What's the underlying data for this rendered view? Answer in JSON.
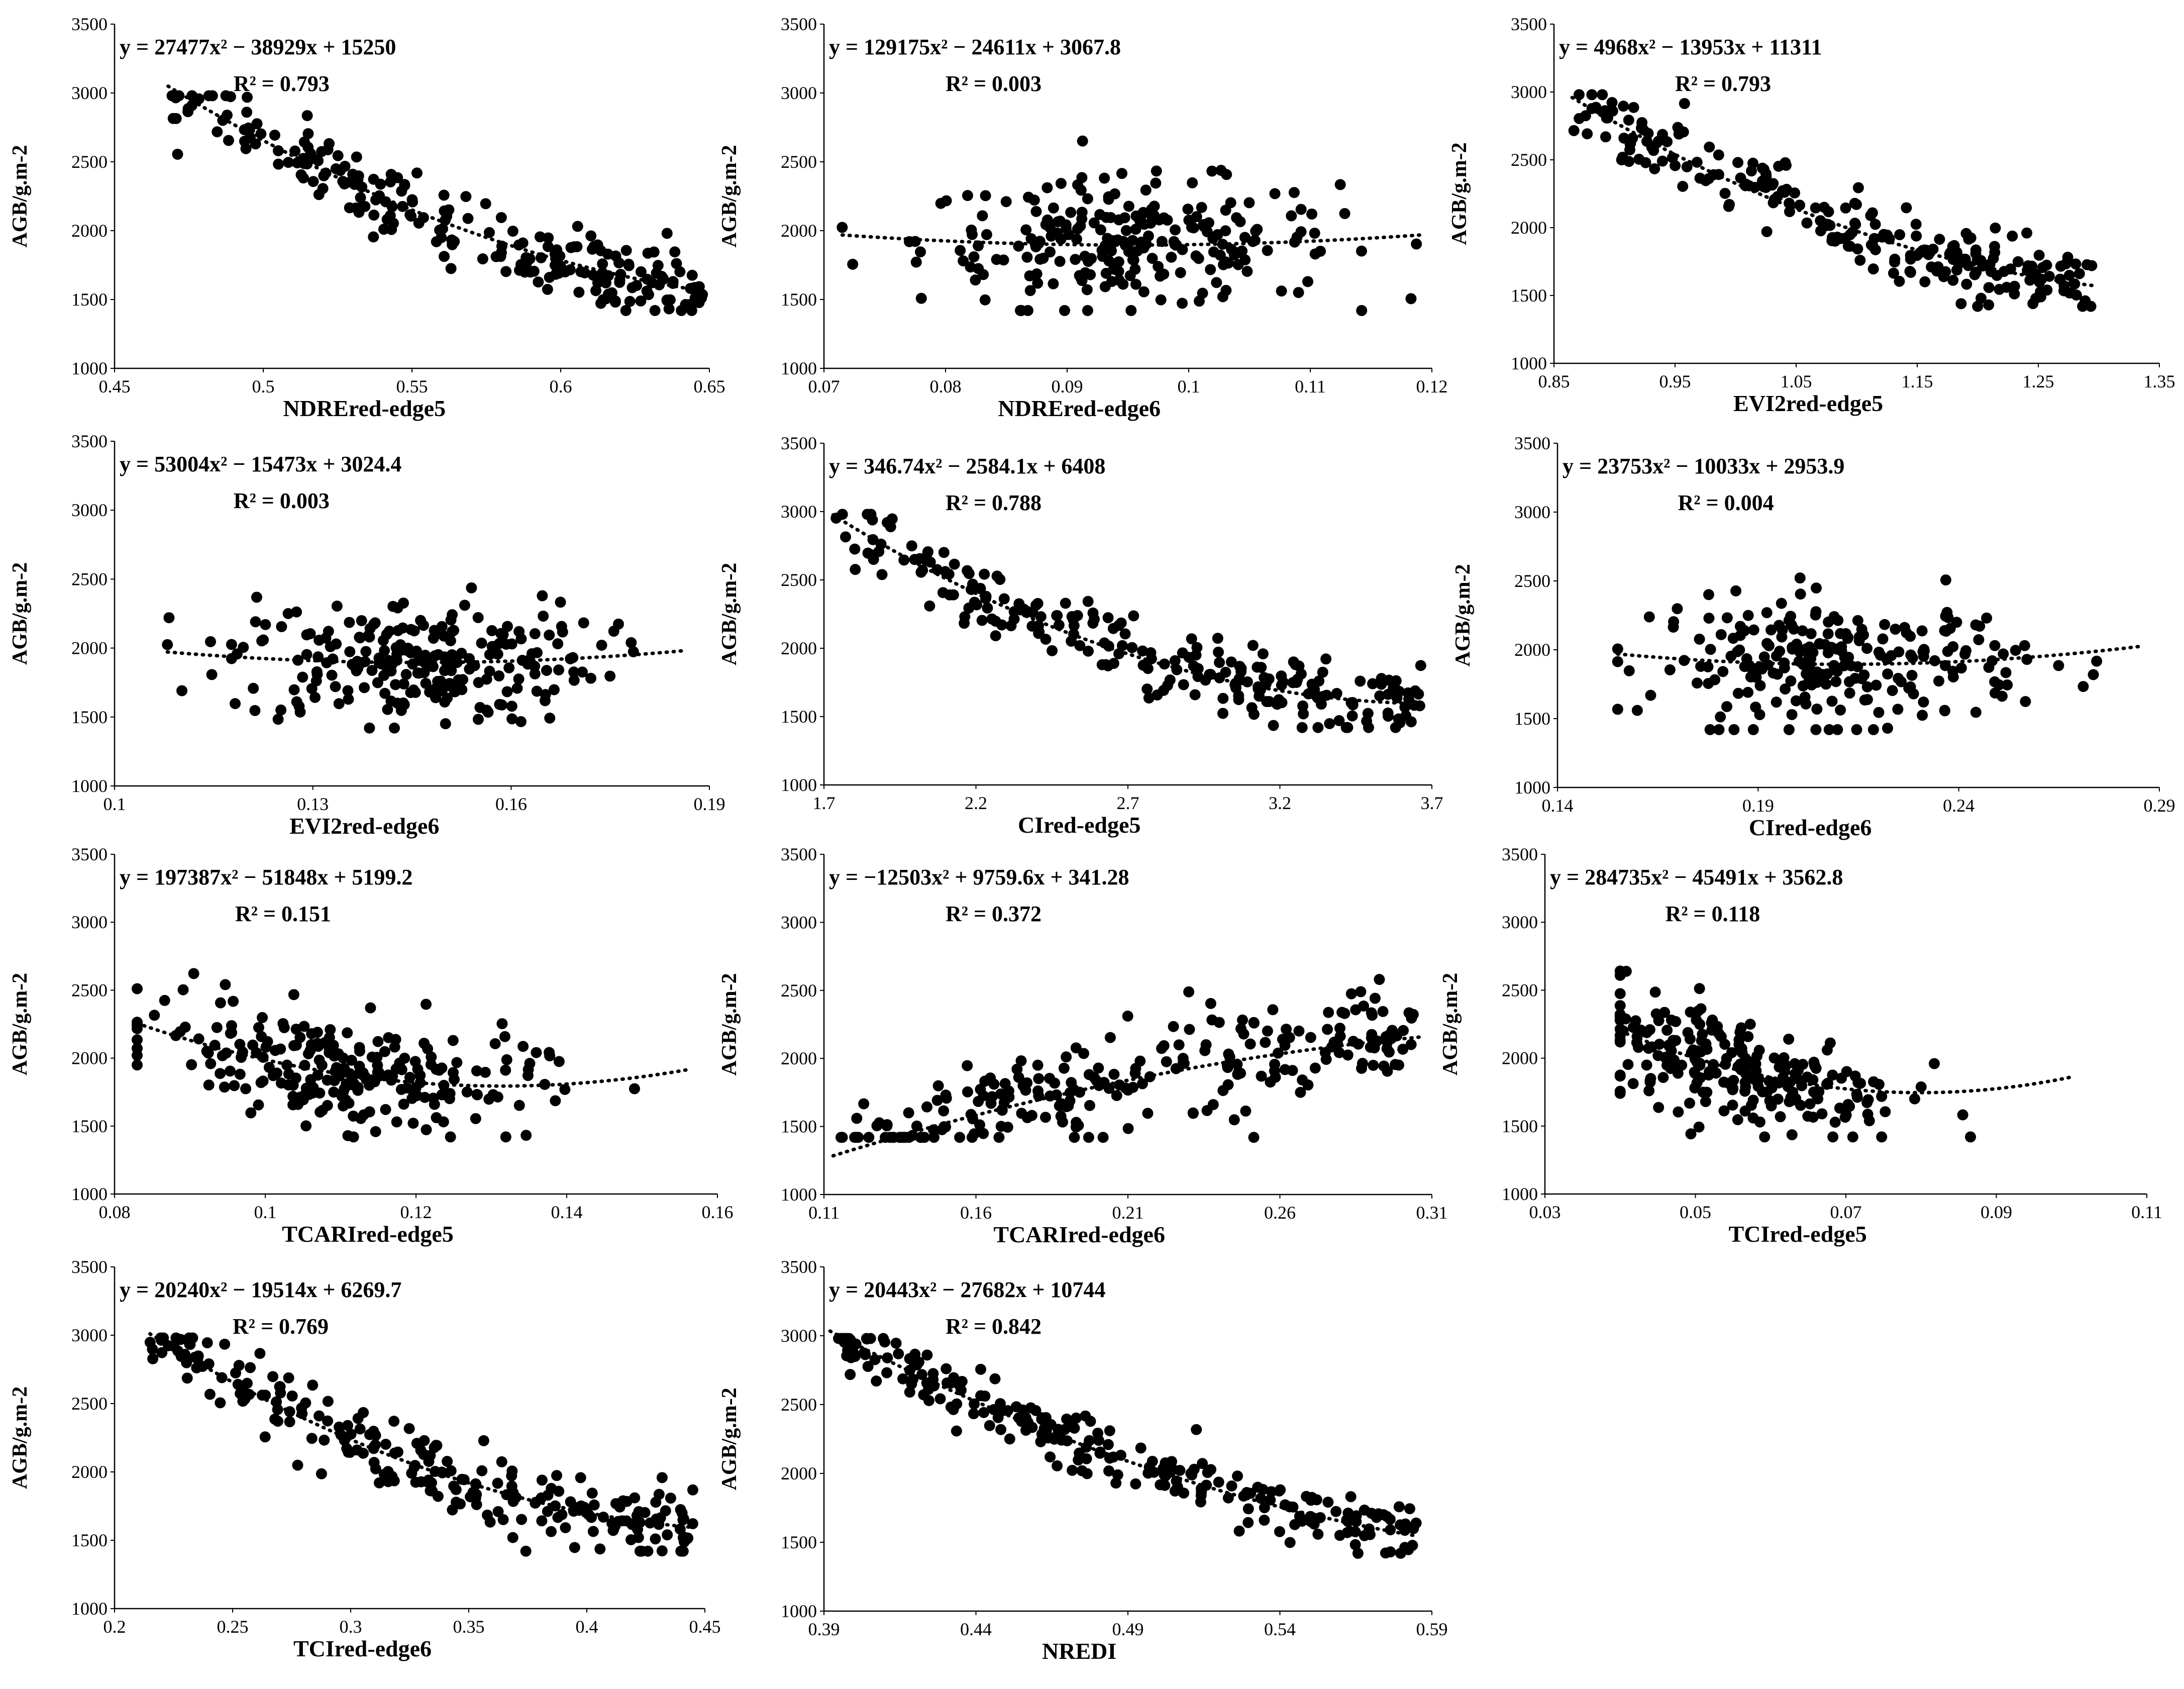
{
  "figure": {
    "y_label": "AGB/g.m-2",
    "point_color": "#000000"
  },
  "chart_data": [
    {
      "type": "scatter",
      "xlabel": "NDREred-edge5",
      "ylabel": "AGB/g.m-2",
      "xlim": [
        0.45,
        0.65
      ],
      "ylim": [
        1000,
        3500
      ],
      "xticks": [
        "0.45",
        "0.5",
        "0.55",
        "0.6",
        "0.65"
      ],
      "yticks": [
        "1000",
        "1500",
        "2000",
        "2500",
        "3000",
        "3500"
      ],
      "equation": "y = 27477x² − 38929x + 15250",
      "r2": "R² = 0.793",
      "trend": {
        "a": 27477,
        "b": -38929,
        "c": 15250
      },
      "pattern": {
        "kind": "trend",
        "x_range": [
          0.468,
          0.648
        ],
        "spread": 130,
        "n": 240
      }
    },
    {
      "type": "scatter",
      "xlabel": "NDREred-edge6",
      "ylabel": "AGB/g.m-2",
      "xlim": [
        0.07,
        0.12
      ],
      "ylim": [
        1000,
        3500
      ],
      "xticks": [
        "0.07",
        "0.08",
        "0.09",
        "0.1",
        "0.11",
        "0.12"
      ],
      "yticks": [
        "1000",
        "1500",
        "2000",
        "2500",
        "3000",
        "3500"
      ],
      "equation": "y = 129175x² − 24611x + 3067.8",
      "r2": "R² = 0.003",
      "trend": {
        "a": 129175,
        "b": -24611,
        "c": 3067.8
      },
      "pattern": {
        "kind": "cloud",
        "x_range": [
          0.0715,
          0.119
        ],
        "center": 0.095,
        "spread": 230,
        "n": 240
      }
    },
    {
      "type": "scatter",
      "xlabel": "EVI2red-edge5",
      "ylabel": "AGB/g.m-2",
      "xlim": [
        0.85,
        1.35
      ],
      "ylim": [
        1000,
        3500
      ],
      "xticks": [
        "0.85",
        "0.95",
        "1.05",
        "1.15",
        "1.25",
        "1.35"
      ],
      "yticks": [
        "1000",
        "1500",
        "2000",
        "2500",
        "3000",
        "3500"
      ],
      "equation": "y = 4968x² − 13953x + 11311",
      "r2": "R² = 0.793",
      "trend": {
        "a": 4968,
        "b": -13953,
        "c": 11311
      },
      "pattern": {
        "kind": "trend",
        "x_range": [
          0.865,
          1.295
        ],
        "spread": 130,
        "n": 240
      }
    },
    {
      "type": "scatter",
      "xlabel": "EVI2red-edge6",
      "ylabel": "AGB/g.m-2",
      "xlim": [
        0.1,
        0.19
      ],
      "ylim": [
        1000,
        3500
      ],
      "xticks": [
        "0.1",
        "0.13",
        "0.16",
        "0.19"
      ],
      "yticks": [
        "1000",
        "1500",
        "2000",
        "2500",
        "3000",
        "3500"
      ],
      "equation": "y = 53004x² − 15473x + 3024.4",
      "r2": "R² = 0.003",
      "trend": {
        "a": 53004,
        "b": -15473,
        "c": 3024.4
      },
      "pattern": {
        "kind": "cloud",
        "x_range": [
          0.108,
          0.186
        ],
        "center": 0.145,
        "spread": 230,
        "n": 240
      }
    },
    {
      "type": "scatter",
      "xlabel": "CIred-edge5",
      "ylabel": "AGB/g.m-2",
      "xlim": [
        1.7,
        3.7
      ],
      "ylim": [
        1000,
        3500
      ],
      "xticks": [
        "1.7",
        "2.2",
        "2.7",
        "3.2",
        "3.7"
      ],
      "yticks": [
        "1000",
        "1500",
        "2000",
        "2500",
        "3000",
        "3500"
      ],
      "equation": "y = 346.74x² − 2584.1x + 6408",
      "r2": "R² = 0.788",
      "trend": {
        "a": 346.74,
        "b": -2584.1,
        "c": 6408
      },
      "pattern": {
        "kind": "trend",
        "x_range": [
          1.73,
          3.67
        ],
        "spread": 130,
        "n": 240
      }
    },
    {
      "type": "scatter",
      "xlabel": "CIred-edge6",
      "ylabel": "AGB/g.m-2",
      "xlim": [
        0.14,
        0.29
      ],
      "ylim": [
        1000,
        3500
      ],
      "xticks": [
        "0.14",
        "0.19",
        "0.24",
        "0.29"
      ],
      "yticks": [
        "1000",
        "1500",
        "2000",
        "2500",
        "3000",
        "3500"
      ],
      "equation": "y = 23753x² − 10033x + 2953.9",
      "r2": "R² = 0.004",
      "trend": {
        "a": 23753,
        "b": -10033,
        "c": 2953.9
      },
      "pattern": {
        "kind": "cloud",
        "x_range": [
          0.155,
          0.285
        ],
        "center": 0.21,
        "spread": 230,
        "n": 240
      }
    },
    {
      "type": "scatter",
      "xlabel": "TCARIred-edge5",
      "ylabel": "AGB/g.m-2",
      "xlim": [
        0.08,
        0.16
      ],
      "ylim": [
        1000,
        3500
      ],
      "xticks": [
        "0.08",
        "0.1",
        "0.12",
        "0.14",
        "0.16"
      ],
      "yticks": [
        "1000",
        "1500",
        "2000",
        "2500",
        "3000",
        "3500"
      ],
      "equation": "y = 197387x² − 51848x + 5199.2",
      "r2": "R² = 0.151",
      "trend": {
        "a": 197387,
        "b": -51848,
        "c": 5199.2
      },
      "pattern": {
        "kind": "cloud",
        "x_range": [
          0.083,
          0.156
        ],
        "center": 0.11,
        "spread": 200,
        "n": 240
      }
    },
    {
      "type": "scatter",
      "xlabel": "TCARIred-edge6",
      "ylabel": "AGB/g.m-2",
      "xlim": [
        0.11,
        0.31
      ],
      "ylim": [
        1000,
        3500
      ],
      "xticks": [
        "0.11",
        "0.16",
        "0.21",
        "0.26",
        "0.31"
      ],
      "yticks": [
        "1000",
        "1500",
        "2000",
        "2500",
        "3000",
        "3500"
      ],
      "equation": "y = −12503x² + 9759.6x + 341.28",
      "r2": "R² = 0.372",
      "trend": {
        "a": -12503,
        "b": 9759.6,
        "c": 341.28
      },
      "pattern": {
        "kind": "trend",
        "x_range": [
          0.113,
          0.306
        ],
        "spread": 180,
        "n": 240
      }
    },
    {
      "type": "scatter",
      "xlabel": "TCIred-edge5",
      "ylabel": "AGB/g.m-2",
      "xlim": [
        0.03,
        0.11
      ],
      "ylim": [
        1000,
        3500
      ],
      "xticks": [
        "0.03",
        "0.05",
        "0.07",
        "0.09",
        "0.11"
      ],
      "yticks": [
        "1000",
        "1500",
        "2000",
        "2500",
        "3000",
        "3500"
      ],
      "equation": "y = 284735x² − 45491x + 3562.8",
      "r2": "R² = 0.118",
      "trend": {
        "a": 284735,
        "b": -45491,
        "c": 3562.8
      },
      "pattern": {
        "kind": "cloud",
        "x_range": [
          0.04,
          0.1
        ],
        "center": 0.056,
        "spread": 210,
        "n": 240
      }
    },
    {
      "type": "scatter",
      "xlabel": "TCIred-edge6",
      "ylabel": "AGB/g.m-2",
      "xlim": [
        0.2,
        0.45
      ],
      "ylim": [
        1000,
        3500
      ],
      "xticks": [
        "0.2",
        "0.25",
        "0.3",
        "0.35",
        "0.4",
        "0.45"
      ],
      "yticks": [
        "1000",
        "1500",
        "2000",
        "2500",
        "3000",
        "3500"
      ],
      "equation": "y = 20240x² − 19514x + 6269.7",
      "r2": "R² = 0.769",
      "trend": {
        "a": 20240,
        "b": -19514,
        "c": 6269.7
      },
      "pattern": {
        "kind": "trend",
        "x_range": [
          0.215,
          0.445
        ],
        "spread": 130,
        "n": 240
      }
    },
    {
      "type": "scatter",
      "xlabel": "NREDI",
      "ylabel": "AGB/g.m-2",
      "xlim": [
        0.39,
        0.59
      ],
      "ylim": [
        1000,
        3500
      ],
      "xticks": [
        "0.39",
        "0.44",
        "0.49",
        "0.54",
        "0.59"
      ],
      "yticks": [
        "1000",
        "1500",
        "2000",
        "2500",
        "3000",
        "3500"
      ],
      "equation": "y = 20443x² − 27682x + 10744",
      "r2": "R² = 0.842",
      "trend": {
        "a": 20443,
        "b": -27682,
        "c": 10744
      },
      "pattern": {
        "kind": "trend",
        "x_range": [
          0.392,
          0.585
        ],
        "spread": 110,
        "n": 240
      }
    }
  ]
}
